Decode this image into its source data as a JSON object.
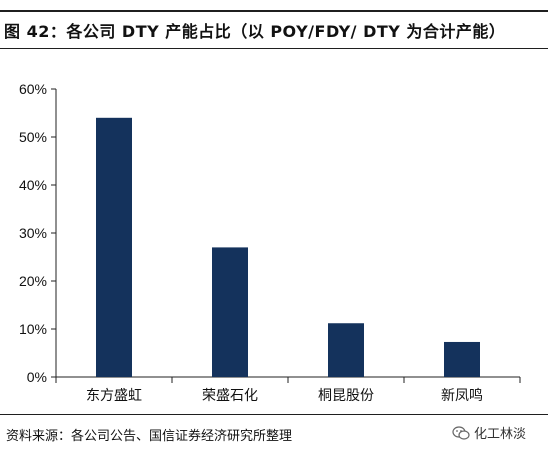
{
  "figure": {
    "title": "图 42：各公司 DTY 产能占比（以 POY/FDY/ DTY 为合计产能）",
    "source": "资料来源：各公司公告、国信证券经济研究所整理",
    "watermark": "化工林淡"
  },
  "chart_data": {
    "type": "bar",
    "title": "图 42：各公司 DTY 产能占比（以 POY/FDY/ DTY 为合计产能）",
    "categories": [
      "东方盛虹",
      "荣盛石化",
      "桐昆股份",
      "新凤鸣"
    ],
    "values": [
      0.54,
      0.27,
      0.112,
      0.073
    ],
    "ylim": [
      0,
      0.6
    ],
    "yticks": [
      0,
      0.1,
      0.2,
      0.3,
      0.4,
      0.5,
      0.6
    ],
    "ytick_labels": [
      "0%",
      "10%",
      "20%",
      "30%",
      "40%",
      "50%",
      "60%"
    ],
    "xlabel": "",
    "ylabel": "",
    "bar_color": "#14325c",
    "grid": false,
    "legend": "none"
  }
}
